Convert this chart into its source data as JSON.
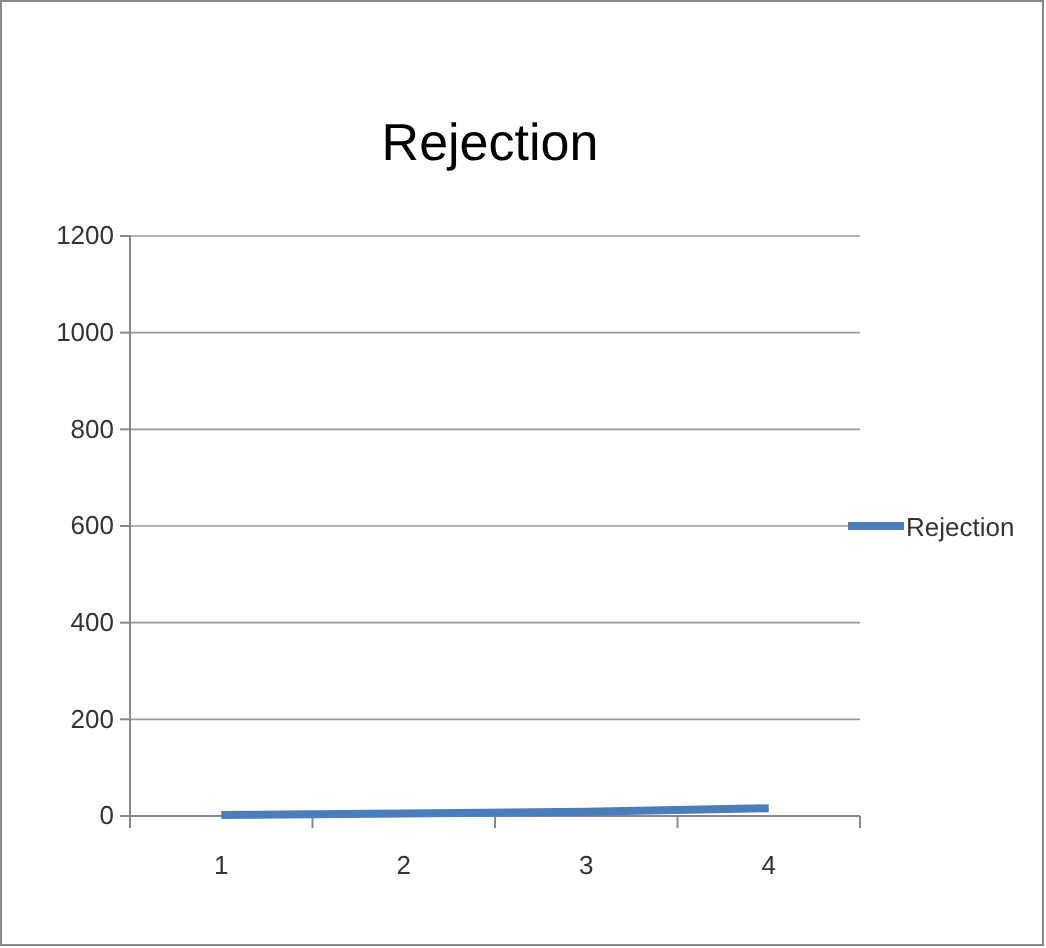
{
  "chart_data": {
    "type": "line",
    "title": "Rejection",
    "categories": [
      "1",
      "2",
      "3",
      "4"
    ],
    "series": [
      {
        "name": "Rejection",
        "color": "#4a7ebb",
        "values": [
          2,
          5,
          9,
          16
        ]
      }
    ],
    "ylim": [
      0,
      1200
    ],
    "yticks": [
      0,
      200,
      400,
      600,
      800,
      1000,
      1200
    ],
    "grid": "y",
    "legend": "right",
    "marker": "none",
    "line_style": "solid"
  }
}
